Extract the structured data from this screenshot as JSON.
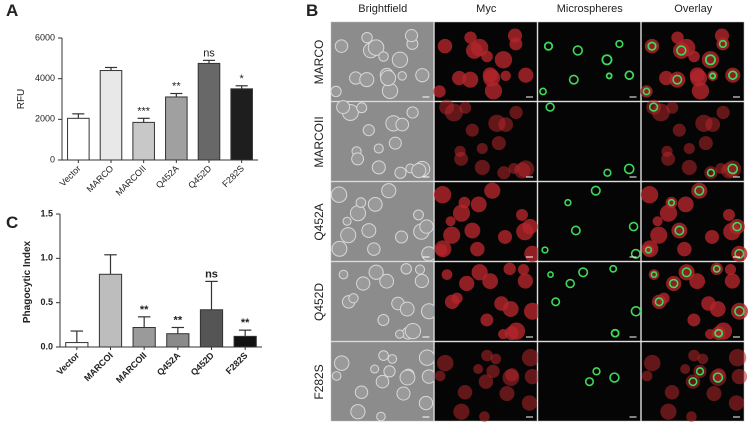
{
  "chart_data": [
    {
      "type": "bar",
      "panel_label": "A",
      "y_label": "RFU",
      "categories": [
        "Vector",
        "MARCO",
        "MARCOII",
        "Q452A",
        "Q452D",
        "F282S"
      ],
      "values": [
        2050,
        4400,
        1850,
        3100,
        4750,
        3500
      ],
      "errors": [
        220,
        150,
        200,
        170,
        150,
        150
      ],
      "annotations": [
        null,
        null,
        "***",
        "**",
        "ns",
        "*"
      ],
      "colors": [
        "#ffffff",
        "#e8e8e8",
        "#c8c8c8",
        "#a0a0a0",
        "#686868",
        "#1e1e1e"
      ],
      "ylim": [
        0,
        6000
      ],
      "yticks": [
        0,
        2000,
        4000,
        6000
      ]
    },
    {
      "type": "bar",
      "panel_label": "C",
      "y_label": "Phagocytic Index",
      "categories": [
        "Vector",
        "MARCOI",
        "MARCOII",
        "Q452A",
        "Q452D",
        "F282S"
      ],
      "values": [
        0.05,
        0.82,
        0.22,
        0.15,
        0.42,
        0.12
      ],
      "errors": [
        0.13,
        0.22,
        0.12,
        0.07,
        0.32,
        0.07
      ],
      "annotations": [
        null,
        null,
        "**",
        "**",
        "ns",
        "**"
      ],
      "colors": [
        "#ffffff",
        "#bdbdbd",
        "#9a9a9a",
        "#8a8a8a",
        "#555555",
        "#111111"
      ],
      "ylim": [
        0,
        1.5
      ],
      "yticks": [
        {
          "value": 0,
          "label": "0.0"
        },
        0.5,
        {
          "value": 1,
          "label": "1.0"
        },
        1.5
      ]
    }
  ],
  "image_panel": {
    "panel_label": "B",
    "columns": [
      "Brightfield",
      "Myc",
      "Microspheres",
      "Overlay"
    ],
    "rows": [
      "MARCO",
      "MARCOII",
      "Q452A",
      "Q452D",
      "F282S"
    ]
  }
}
